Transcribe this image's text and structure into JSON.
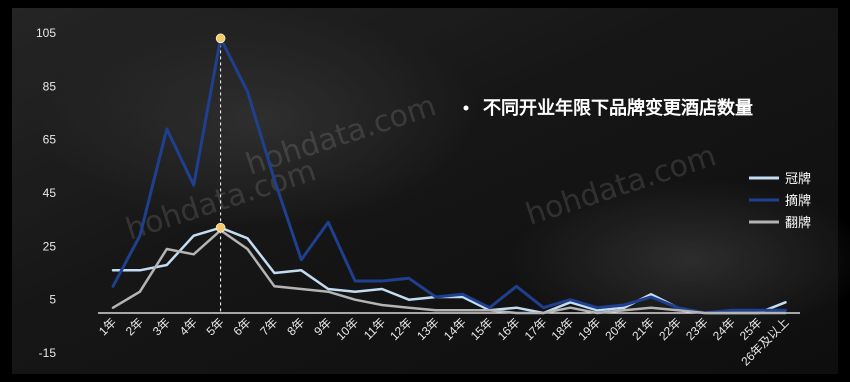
{
  "chart_data": {
    "type": "line",
    "title": "不同开业年限下品牌变更酒店数量",
    "xlabel": "",
    "ylabel": "",
    "ylim": [
      -15,
      105
    ],
    "y_ticks": [
      105,
      85,
      65,
      45,
      25,
      5,
      -15
    ],
    "categories": [
      "1年",
      "2年",
      "3年",
      "4年",
      "5年",
      "6年",
      "7年",
      "8年",
      "9年",
      "10年",
      "11年",
      "12年",
      "13年",
      "14年",
      "15年",
      "16年",
      "17年",
      "18年",
      "19年",
      "20年",
      "21年",
      "22年",
      "23年",
      "24年",
      "25年",
      "26年及以上"
    ],
    "series": [
      {
        "name": "冠牌",
        "color": "#c3dcf2",
        "values": [
          16,
          16,
          18,
          29,
          32,
          28,
          15,
          16,
          9,
          8,
          9,
          5,
          6,
          6,
          1,
          2,
          0,
          4,
          1,
          2,
          7,
          2,
          0,
          0,
          0,
          4
        ]
      },
      {
        "name": "摘牌",
        "color": "#1f3f8f",
        "values": [
          10,
          29,
          69,
          48,
          103,
          83,
          50,
          20,
          34,
          12,
          12,
          13,
          6,
          7,
          2,
          10,
          2,
          5,
          2,
          3,
          6,
          2,
          0,
          1,
          1,
          1
        ]
      },
      {
        "name": "翻牌",
        "color": "#b4b4b4",
        "values": [
          2,
          8,
          24,
          22,
          31,
          24,
          10,
          9,
          8,
          5,
          3,
          2,
          1,
          1,
          1,
          0,
          0,
          2,
          0,
          1,
          2,
          1,
          0,
          0,
          0,
          0
        ]
      }
    ],
    "highlight": {
      "category": "5年",
      "marker_color": "#f3c969"
    },
    "legend_position": "right",
    "grid": false
  },
  "watermark": [
    "hohdata.com",
    "hohdata.com",
    "hohdata.com"
  ]
}
